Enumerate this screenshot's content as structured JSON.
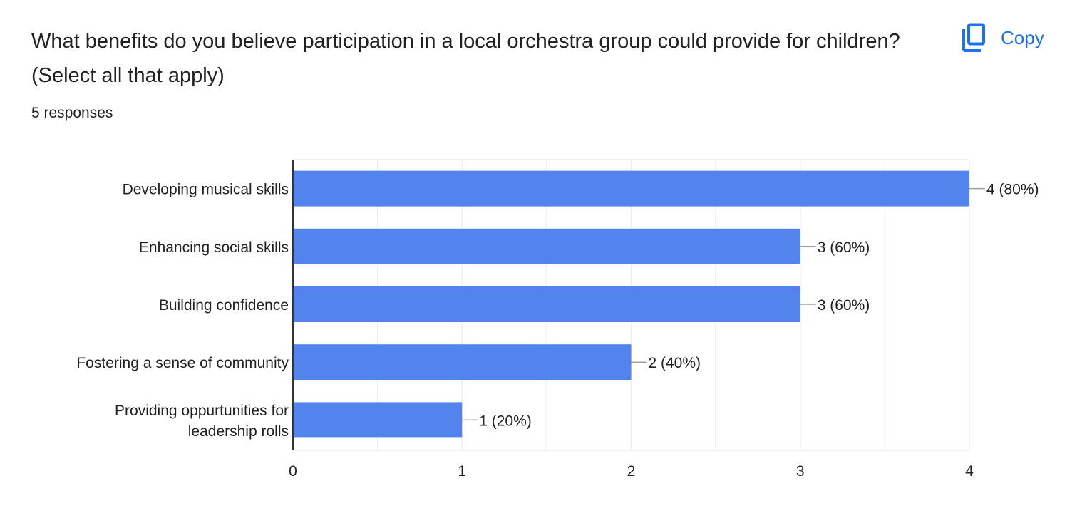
{
  "question": {
    "title": "What benefits do you believe participation in a local orchestra group could provide for children? (Select all that apply)",
    "responses": "5 responses"
  },
  "toolbar": {
    "copy_label": "Copy",
    "copy_icon": "copy-icon"
  },
  "colors": {
    "bar": "#5384ed",
    "accent": "#1a73e8",
    "grid": "#eeeeee",
    "axis": "#333333",
    "leader": "#9e9e9e"
  },
  "chart_data": {
    "type": "bar",
    "orientation": "horizontal",
    "categories": [
      "Developing musical skills",
      "Enhancing social skills",
      "Building confidence",
      "Fostering a sense of community",
      "Providing oppurtunities for leadership rolls"
    ],
    "values": [
      4,
      3,
      3,
      2,
      1
    ],
    "data_labels": [
      "4 (80%)",
      "3 (60%)",
      "3 (60%)",
      "2 (40%)",
      "1 (20%)"
    ],
    "x_ticks": [
      "0",
      "1",
      "2",
      "3",
      "4"
    ],
    "xlim": [
      0,
      4
    ],
    "grid": true,
    "legend": "none"
  }
}
